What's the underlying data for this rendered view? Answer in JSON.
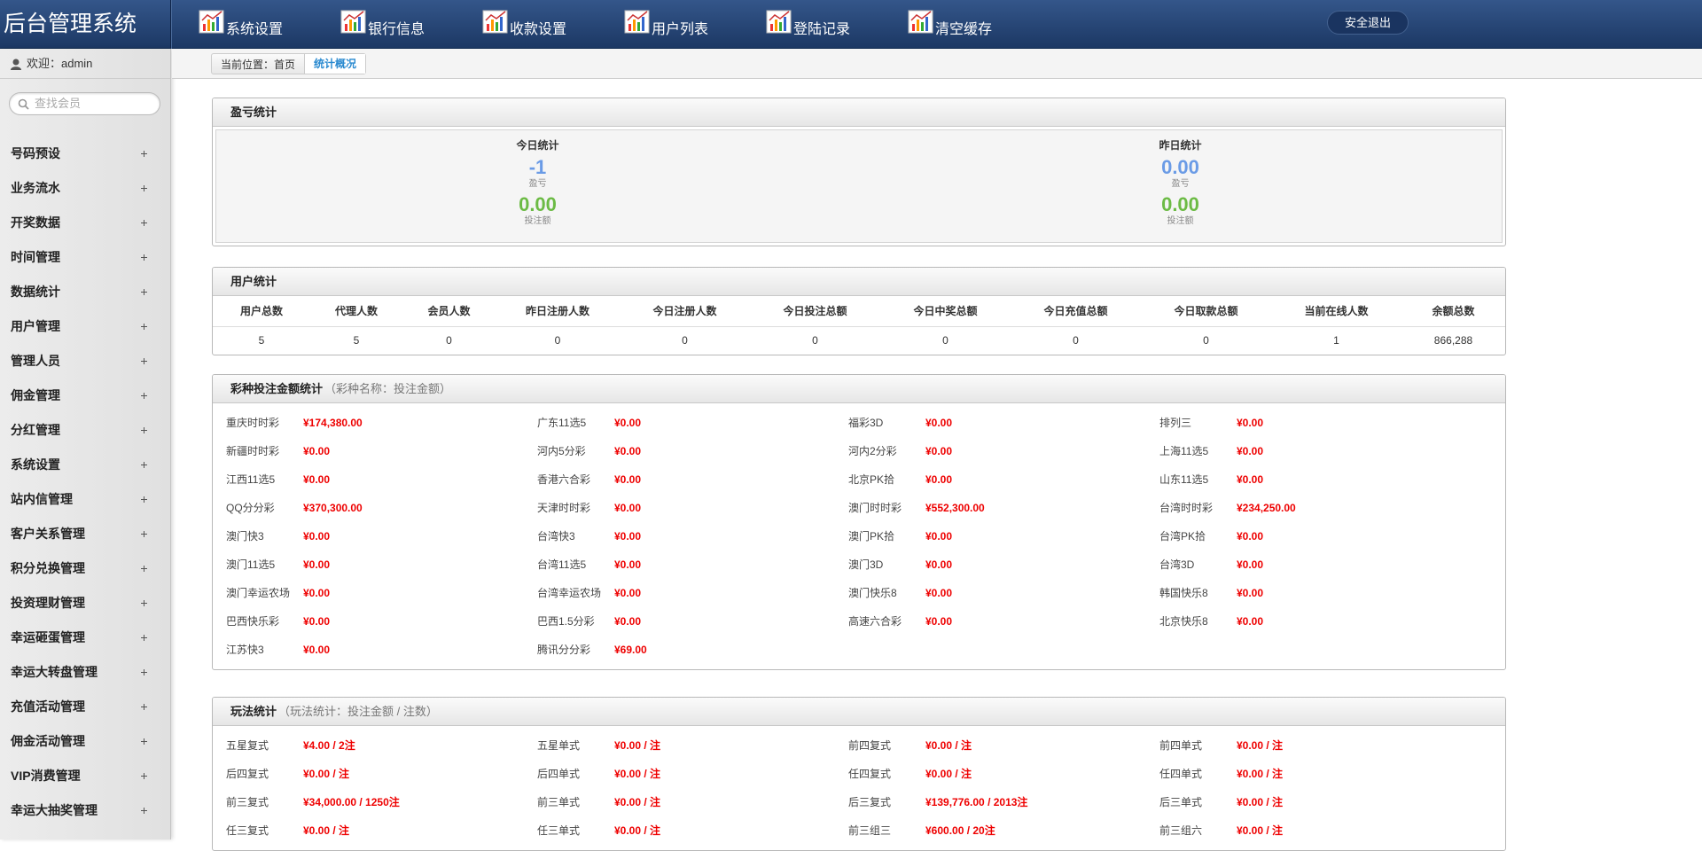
{
  "header": {
    "title": "后台管理系统",
    "nav": [
      "系统设置",
      "银行信息",
      "收款设置",
      "用户列表",
      "登陆记录",
      "清空缓存"
    ],
    "logout": "安全退出"
  },
  "sidebar": {
    "welcome": "欢迎：admin",
    "search_placeholder": "查找会员",
    "menu": [
      "号码预设",
      "业务流水",
      "开奖数据",
      "时间管理",
      "数据统计",
      "用户管理",
      "管理人员",
      "佣金管理",
      "分红管理",
      "系统设置",
      "站内信管理",
      "客户关系管理",
      "积分兑换管理",
      "投资理财管理",
      "幸运砸蛋管理",
      "幸运大转盘管理",
      "充值活动管理",
      "佣金活动管理",
      "VIP消费管理",
      "幸运大抽奖管理"
    ]
  },
  "breadcrumb": {
    "location": "当前位置：首页",
    "current": "统计概况"
  },
  "profit": {
    "title": "盈亏统计",
    "columns": [
      {
        "heading": "今日统计",
        "items": [
          {
            "value": "-1",
            "label": "盈亏"
          },
          {
            "value": "0.00",
            "label": "投注额"
          }
        ]
      },
      {
        "heading": "昨日统计",
        "items": [
          {
            "value": "0.00",
            "label": "盈亏"
          },
          {
            "value": "0.00",
            "label": "投注额"
          }
        ]
      }
    ]
  },
  "users": {
    "title": "用户统计",
    "headers": [
      "用户总数",
      "代理人数",
      "会员人数",
      "昨日注册人数",
      "今日注册人数",
      "今日投注总额",
      "今日中奖总额",
      "今日充值总额",
      "今日取款总额",
      "当前在线人数",
      "余额总数"
    ],
    "rows": [
      [
        5,
        5,
        0,
        0,
        0,
        0,
        0,
        0,
        0,
        1,
        "866,288"
      ]
    ]
  },
  "lottery": {
    "title": "彩种投注金额统计",
    "subtitle": "（彩种名称：投注金额）",
    "items": [
      {
        "name": "重庆时时彩",
        "amount": "¥174,380.00"
      },
      {
        "name": "广东11选5",
        "amount": "¥0.00"
      },
      {
        "name": "福彩3D",
        "amount": "¥0.00"
      },
      {
        "name": "排列三",
        "amount": "¥0.00"
      },
      {
        "name": "新疆时时彩",
        "amount": "¥0.00"
      },
      {
        "name": "河内5分彩",
        "amount": "¥0.00"
      },
      {
        "name": "河内2分彩",
        "amount": "¥0.00"
      },
      {
        "name": "上海11选5",
        "amount": "¥0.00"
      },
      {
        "name": "江西11选5",
        "amount": "¥0.00"
      },
      {
        "name": "香港六合彩",
        "amount": "¥0.00"
      },
      {
        "name": "北京PK拾",
        "amount": "¥0.00"
      },
      {
        "name": "山东11选5",
        "amount": "¥0.00"
      },
      {
        "name": "QQ分分彩",
        "amount": "¥370,300.00"
      },
      {
        "name": "天津时时彩",
        "amount": "¥0.00"
      },
      {
        "name": "澳门时时彩",
        "amount": "¥552,300.00"
      },
      {
        "name": "台湾时时彩",
        "amount": "¥234,250.00"
      },
      {
        "name": "澳门快3",
        "amount": "¥0.00"
      },
      {
        "name": "台湾快3",
        "amount": "¥0.00"
      },
      {
        "name": "澳门PK拾",
        "amount": "¥0.00"
      },
      {
        "name": "台湾PK拾",
        "amount": "¥0.00"
      },
      {
        "name": "澳门11选5",
        "amount": "¥0.00"
      },
      {
        "name": "台湾11选5",
        "amount": "¥0.00"
      },
      {
        "name": "澳门3D",
        "amount": "¥0.00"
      },
      {
        "name": "台湾3D",
        "amount": "¥0.00"
      },
      {
        "name": "澳门幸运农场",
        "amount": "¥0.00"
      },
      {
        "name": "台湾幸运农场",
        "amount": "¥0.00"
      },
      {
        "name": "澳门快乐8",
        "amount": "¥0.00"
      },
      {
        "name": "韩国快乐8",
        "amount": "¥0.00"
      },
      {
        "name": "巴西快乐彩",
        "amount": "¥0.00"
      },
      {
        "name": "巴西1.5分彩",
        "amount": "¥0.00"
      },
      {
        "name": "高速六合彩",
        "amount": "¥0.00"
      },
      {
        "name": "北京快乐8",
        "amount": "¥0.00"
      },
      {
        "name": "江苏快3",
        "amount": "¥0.00"
      },
      {
        "name": "腾讯分分彩",
        "amount": "¥69.00"
      }
    ]
  },
  "plays": {
    "title": "玩法统计",
    "subtitle": "（玩法统计：投注金额 / 注数）",
    "items": [
      {
        "name": "五星复式",
        "amount": "¥4.00 / 2注"
      },
      {
        "name": "五星单式",
        "amount": "¥0.00 / 注"
      },
      {
        "name": "前四复式",
        "amount": "¥0.00 / 注"
      },
      {
        "name": "前四单式",
        "amount": "¥0.00 / 注"
      },
      {
        "name": "后四复式",
        "amount": "¥0.00 / 注"
      },
      {
        "name": "后四单式",
        "amount": "¥0.00 / 注"
      },
      {
        "name": "任四复式",
        "amount": "¥0.00 / 注"
      },
      {
        "name": "任四单式",
        "amount": "¥0.00 / 注"
      },
      {
        "name": "前三复式",
        "amount": "¥34,000.00 / 1250注"
      },
      {
        "name": "前三单式",
        "amount": "¥0.00 / 注"
      },
      {
        "name": "后三复式",
        "amount": "¥139,776.00 / 2013注"
      },
      {
        "name": "后三单式",
        "amount": "¥0.00 / 注"
      },
      {
        "name": "任三复式",
        "amount": "¥0.00 / 注"
      },
      {
        "name": "任三单式",
        "amount": "¥0.00 / 注"
      },
      {
        "name": "前三组三",
        "amount": "¥600.00 / 20注"
      },
      {
        "name": "前三组六",
        "amount": "¥0.00 / 注"
      }
    ]
  }
}
